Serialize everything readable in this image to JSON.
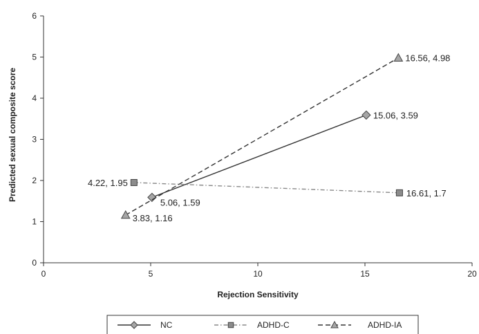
{
  "chart_data": {
    "type": "line",
    "title": "",
    "xlabel": "Rejection Sensitivity",
    "ylabel": "Predicted sexual composite score",
    "xlim": [
      0,
      20
    ],
    "ylim": [
      0,
      6
    ],
    "xticks": [
      0,
      5,
      10,
      15,
      20
    ],
    "yticks": [
      0,
      1,
      2,
      3,
      4,
      5,
      6
    ],
    "grid": false,
    "legend_position": "bottom",
    "series": [
      {
        "name": "NC",
        "marker": "diamond",
        "line_style": "solid",
        "points": [
          {
            "x": 5.06,
            "y": 1.59,
            "label": "5.06, 1.59"
          },
          {
            "x": 15.06,
            "y": 3.59,
            "label": "15.06, 3.59"
          }
        ]
      },
      {
        "name": "ADHD-C",
        "marker": "square",
        "line_style": "dash-dot",
        "points": [
          {
            "x": 4.22,
            "y": 1.95,
            "label": "4.22, 1.95"
          },
          {
            "x": 16.61,
            "y": 1.7,
            "label": "16.61, 1.7"
          }
        ]
      },
      {
        "name": "ADHD-IA",
        "marker": "triangle",
        "line_style": "dashed",
        "points": [
          {
            "x": 3.83,
            "y": 1.16,
            "label": "3.83, 1.16"
          },
          {
            "x": 16.56,
            "y": 4.98,
            "label": "16.56, 4.98"
          }
        ]
      }
    ]
  }
}
